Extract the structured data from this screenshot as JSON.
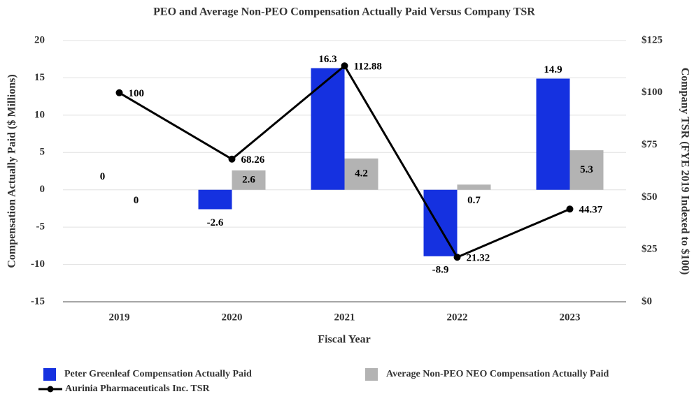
{
  "chart_data": {
    "type": "bar",
    "title": "PEO and Average Non-PEO Compensation Actually Paid Versus Company TSR",
    "x_label": "Fiscal Year",
    "y_label": "Compensation Actually Paid ($ Millions)",
    "y2_label": "Company TSR (FYE 2019 Indexed to $100)",
    "categories": [
      "2019",
      "2020",
      "2021",
      "2022",
      "2023"
    ],
    "ylim": [
      -15,
      20
    ],
    "yticks": [
      -15,
      -10,
      -5,
      0,
      5,
      10,
      15,
      20
    ],
    "y2lim": [
      0,
      125
    ],
    "y2ticks": [
      {
        "value": 0,
        "label": "$0"
      },
      {
        "value": 25,
        "label": "$25"
      },
      {
        "value": 50,
        "label": "$50"
      },
      {
        "value": 75,
        "label": "$75"
      },
      {
        "value": 100,
        "label": "$100"
      },
      {
        "value": 125,
        "label": "$125"
      }
    ],
    "grid": true,
    "series": [
      {
        "name": "Peter Greenleaf Compensation Actually Paid",
        "type": "bar",
        "color": "#1531e0",
        "values": [
          0,
          -2.6,
          16.3,
          -8.9,
          14.9
        ]
      },
      {
        "name": "Average Non-PEO NEO Compensation Actually Paid",
        "type": "bar",
        "color": "#b3b3b3",
        "values": [
          0,
          2.6,
          4.2,
          0.7,
          5.3
        ]
      },
      {
        "name": "Aurinia Pharmaceuticals Inc. TSR",
        "type": "line",
        "axis": "y2",
        "color": "#000000",
        "values": [
          100,
          68.26,
          112.88,
          21.32,
          44.37
        ]
      }
    ]
  }
}
